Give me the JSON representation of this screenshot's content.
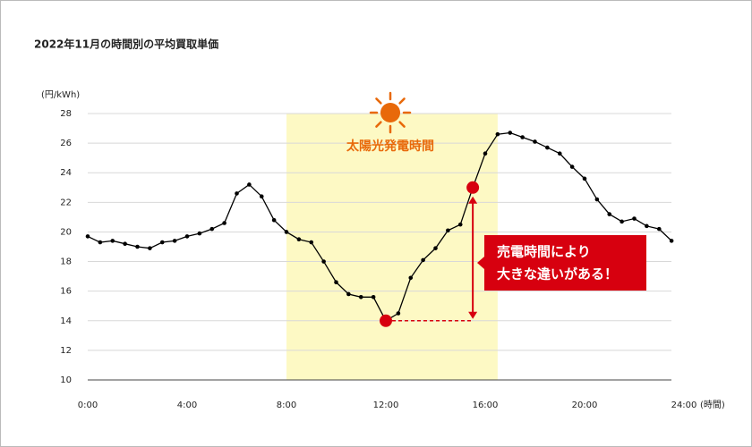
{
  "chart_data": {
    "type": "line",
    "title": "2022年11月の時間別の平均買取単価",
    "y_label": "(円/kWh)",
    "x_label": "(時間)",
    "color": "#000000",
    "x": [
      0,
      0.5,
      1,
      1.5,
      2,
      2.5,
      3,
      3.5,
      4,
      4.5,
      5,
      5.5,
      6,
      6.5,
      7,
      7.5,
      8,
      8.5,
      9,
      9.5,
      10,
      10.5,
      11,
      11.5,
      12,
      12.5,
      13,
      13.5,
      14,
      14.5,
      15,
      15.5,
      16,
      16.5,
      17,
      17.5,
      18,
      18.5,
      19,
      19.5,
      20,
      20.5,
      21,
      21.5,
      22,
      22.5,
      23,
      23.5
    ],
    "values": [
      19.7,
      19.3,
      19.4,
      19.2,
      19.0,
      18.9,
      19.3,
      19.4,
      19.7,
      19.9,
      20.2,
      20.6,
      22.6,
      23.2,
      22.4,
      20.8,
      20.0,
      19.5,
      19.3,
      18.0,
      16.6,
      15.8,
      15.6,
      15.6,
      14.0,
      14.5,
      16.9,
      18.1,
      18.9,
      20.1,
      20.5,
      23.0,
      25.3,
      26.6,
      26.7,
      26.4,
      26.1,
      25.7,
      25.3,
      24.4,
      23.6,
      22.2,
      21.2,
      20.7,
      20.9,
      20.4,
      20.2,
      19.4
    ],
    "xlim": [
      0,
      24
    ],
    "ylim": [
      10,
      28
    ],
    "xticks": [
      {
        "value": 0,
        "label": "0:00"
      },
      {
        "value": 4,
        "label": "4:00"
      },
      {
        "value": 8,
        "label": "8:00"
      },
      {
        "value": 12,
        "label": "12:00"
      },
      {
        "value": 16,
        "label": "16:00"
      },
      {
        "value": 20,
        "label": "20:00"
      },
      {
        "value": 24,
        "label": "24:00"
      }
    ],
    "yticks": [
      10,
      12,
      14,
      16,
      18,
      20,
      22,
      24,
      26,
      28
    ],
    "grid": true,
    "highlight": {
      "range": [
        8,
        16.5
      ],
      "label": "太陽光発電時間",
      "color": "#fdf9c4",
      "label_color": "#e8690a"
    },
    "comparison": {
      "points": [
        {
          "x": 12,
          "y": 14
        },
        {
          "x": 15.5,
          "y": 23
        }
      ],
      "color": "#d7000f",
      "text": [
        "売電時間により",
        "大きな違いがある！"
      ]
    }
  }
}
